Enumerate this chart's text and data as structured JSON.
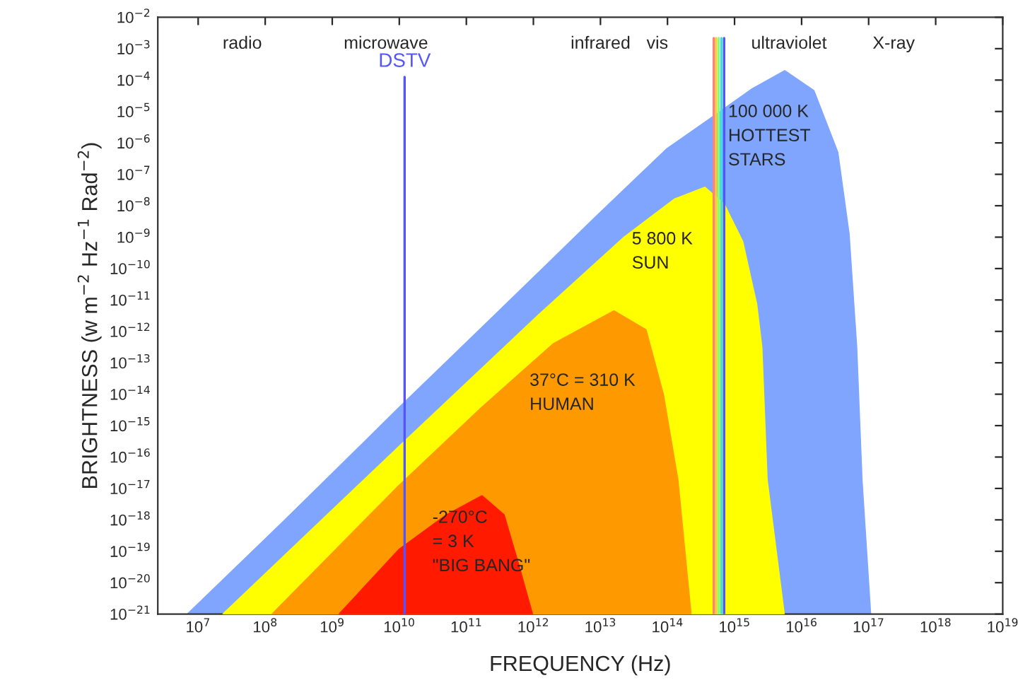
{
  "chart_data": {
    "type": "area",
    "xlabel": "FREQUENCY (Hz)",
    "ylabel": "BRIGHTNESS (w m$^{−2}$ Hz$^{−1}$ Rad$^{−2}$)",
    "log": "xy",
    "grid": false,
    "legend": false,
    "xlim": [
      2500000.0,
      1e+19
    ],
    "ylim": [
      1e-21,
      0.01
    ],
    "xticks": [
      {
        "value": 10000000.0,
        "label": "10$^{7}$"
      },
      {
        "value": 100000000.0,
        "label": "10$^{8}$"
      },
      {
        "value": 1000000000.0,
        "label": "10$^{9}$"
      },
      {
        "value": 10000000000.0,
        "label": "10$^{10}$"
      },
      {
        "value": 100000000000.0,
        "label": "10$^{11}$"
      },
      {
        "value": 1000000000000.0,
        "label": "10$^{12}$"
      },
      {
        "value": 10000000000000.0,
        "label": "10$^{13}$"
      },
      {
        "value": 100000000000000.0,
        "label": "10$^{14}$"
      },
      {
        "value": 1000000000000000.0,
        "label": "10$^{15}$"
      },
      {
        "value": 1e+16,
        "label": "10$^{16}$"
      },
      {
        "value": 1e+17,
        "label": "10$^{17}$"
      },
      {
        "value": 1e+18,
        "label": "10$^{18}$"
      },
      {
        "value": 1e+19,
        "label": "10$^{19}$"
      }
    ],
    "yticks": [
      {
        "value": 0.01,
        "label": "10$^{−2}$"
      },
      {
        "value": 0.001,
        "label": "10$^{−3}$"
      },
      {
        "value": 0.0001,
        "label": "10$^{−4}$"
      },
      {
        "value": 1e-05,
        "label": "10$^{−5}$"
      },
      {
        "value": 1e-06,
        "label": "10$^{−6}$"
      },
      {
        "value": 1e-07,
        "label": "10$^{−7}$"
      },
      {
        "value": 1e-08,
        "label": "10$^{−8}$"
      },
      {
        "value": 1e-09,
        "label": "10$^{−9}$"
      },
      {
        "value": 1e-10,
        "label": "10$^{−10}$"
      },
      {
        "value": 1e-11,
        "label": "10$^{−11}$"
      },
      {
        "value": 1e-12,
        "label": "10$^{−12}$"
      },
      {
        "value": 1e-13,
        "label": "10$^{−13}$"
      },
      {
        "value": 1e-14,
        "label": "10$^{−14}$"
      },
      {
        "value": 1e-15,
        "label": "10$^{−15}$"
      },
      {
        "value": 1e-16,
        "label": "10$^{−16}$"
      },
      {
        "value": 1e-17,
        "label": "10$^{−17}$"
      },
      {
        "value": 1e-18,
        "label": "10$^{−18}$"
      },
      {
        "value": 1e-19,
        "label": "10$^{−19}$"
      },
      {
        "value": 1e-20,
        "label": "10$^{−20}$"
      },
      {
        "value": 1e-21,
        "label": "10$^{−21}$"
      }
    ],
    "series": [
      {
        "color": "#7fa5ff",
        "x": [
          7100000.0,
          190000000.0,
          10000000000.0,
          280000000000.0,
          8500000000000.0,
          98000000000000.0,
          490000000000000.0,
          1800000000000000.0,
          5600000000000000.0,
          1.5e+16,
          3.4e+16,
          5e+16,
          6.5e+16,
          7.8e+16,
          1.05e+17
        ],
        "values": [
          1e-21,
          8.7e-19,
          3.6e-15,
          3.5e-12,
          4.2e-09,
          6.2e-07,
          6.8e-06,
          4.9e-05,
          0.00019,
          4.5e-05,
          5e-07,
          1.3e-09,
          3.2e-13,
          1.9e-17,
          1e-21
        ]
      },
      {
        "color": "#ffff00",
        "x": [
          24000000.0,
          10000000000.0,
          1200000000000.0,
          23000000000000.0,
          130000000000000.0,
          360000000000000.0,
          690000000000000.0,
          1300000000000000.0,
          2100000000000000.0,
          2500000000000000.0,
          3000000000000000.0,
          5400000000000000.0
        ],
        "values": [
          1e-21,
          2.1e-16,
          3.2e-12,
          9.8e-10,
          1.6e-08,
          3.7e-08,
          1.1e-08,
          7.1e-10,
          7.2e-12,
          3.2e-13,
          1.9e-17,
          1e-21
        ]
      },
      {
        "color": "#ff9900",
        "x": [
          130000000.0,
          10000000000.0,
          170000000000.0,
          2000000000000.0,
          16000000000000.0,
          47000000000000.0,
          85000000000000.0,
          140000000000000.0,
          220000000000000.0
        ],
        "values": [
          1e-21,
          1.2e-17,
          3.6e-15,
          3.9e-13,
          4.3e-12,
          1.1e-12,
          1e-14,
          1.9e-17,
          1e-21
        ]
      },
      {
        "color": "#ff1a00",
        "x": [
          1300000000.0,
          10000000000.0,
          51000000000.0,
          170000000000.0,
          360000000000.0,
          590000000000.0,
          950000000000.0
        ],
        "values": [
          1e-21,
          1.1e-19,
          1.4e-18,
          5.6e-18,
          1.4e-18,
          3.8e-20,
          1e-21
        ]
      }
    ],
    "ref_lines": [
      {
        "axis": "x",
        "value": 12000000000.0,
        "label": "DSTV",
        "color": "#5555ff"
      },
      {
        "axis": "x",
        "value": 490000000000000.0,
        "label": null,
        "color": "#ff8080"
      },
      {
        "axis": "x",
        "value": 530000000000000.0,
        "label": null,
        "color": "#ffcc33"
      },
      {
        "axis": "x",
        "value": 580000000000000.0,
        "label": null,
        "color": "#80ff80"
      },
      {
        "axis": "x",
        "value": 640000000000000.0,
        "label": null,
        "color": "#40e0e0"
      },
      {
        "axis": "x",
        "value": 700000000000000.0,
        "label": null,
        "color": "#5555ff"
      }
    ],
    "annotations": [
      "radio",
      "microwave",
      "infrared",
      "vis",
      "ultraviolet",
      "X-ray",
      "100 000 K\nHOTTEST\nSTARS",
      "5 800 K\nSUN",
      "37°C = 310 K\nHUMAN",
      "-270°C\n= 3 K\n\"BIG BANG\""
    ]
  }
}
